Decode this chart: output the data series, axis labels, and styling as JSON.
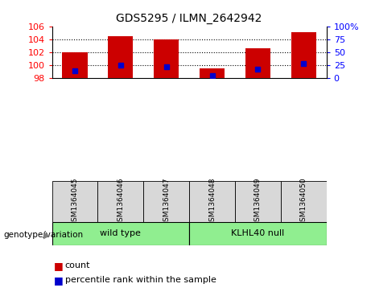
{
  "title": "GDS5295 / ILMN_2642942",
  "samples": [
    "GSM1364045",
    "GSM1364046",
    "GSM1364047",
    "GSM1364048",
    "GSM1364049",
    "GSM1364050"
  ],
  "counts": [
    102.0,
    104.5,
    104.0,
    99.5,
    102.6,
    105.1
  ],
  "percentiles": [
    13,
    25,
    22,
    5,
    17,
    27
  ],
  "ylim_left": [
    98,
    106
  ],
  "ylim_right": [
    0,
    100
  ],
  "yticks_left": [
    98,
    100,
    102,
    104,
    106
  ],
  "yticks_right": [
    0,
    25,
    50,
    75,
    100
  ],
  "yticklabels_right": [
    "0",
    "25",
    "50",
    "75",
    "100%"
  ],
  "gridlines": [
    100,
    102,
    104
  ],
  "group_wt_label": "wild type",
  "group_kl_label": "KLHL40 null",
  "group_color": "#90EE90",
  "bar_color": "#CC0000",
  "percentile_color": "#0000CC",
  "base_value": 98,
  "sample_box_color": "#D8D8D8",
  "bar_width": 0.55,
  "legend_count_label": "count",
  "legend_pct_label": "percentile rank within the sample",
  "genotype_label": "genotype/variation"
}
